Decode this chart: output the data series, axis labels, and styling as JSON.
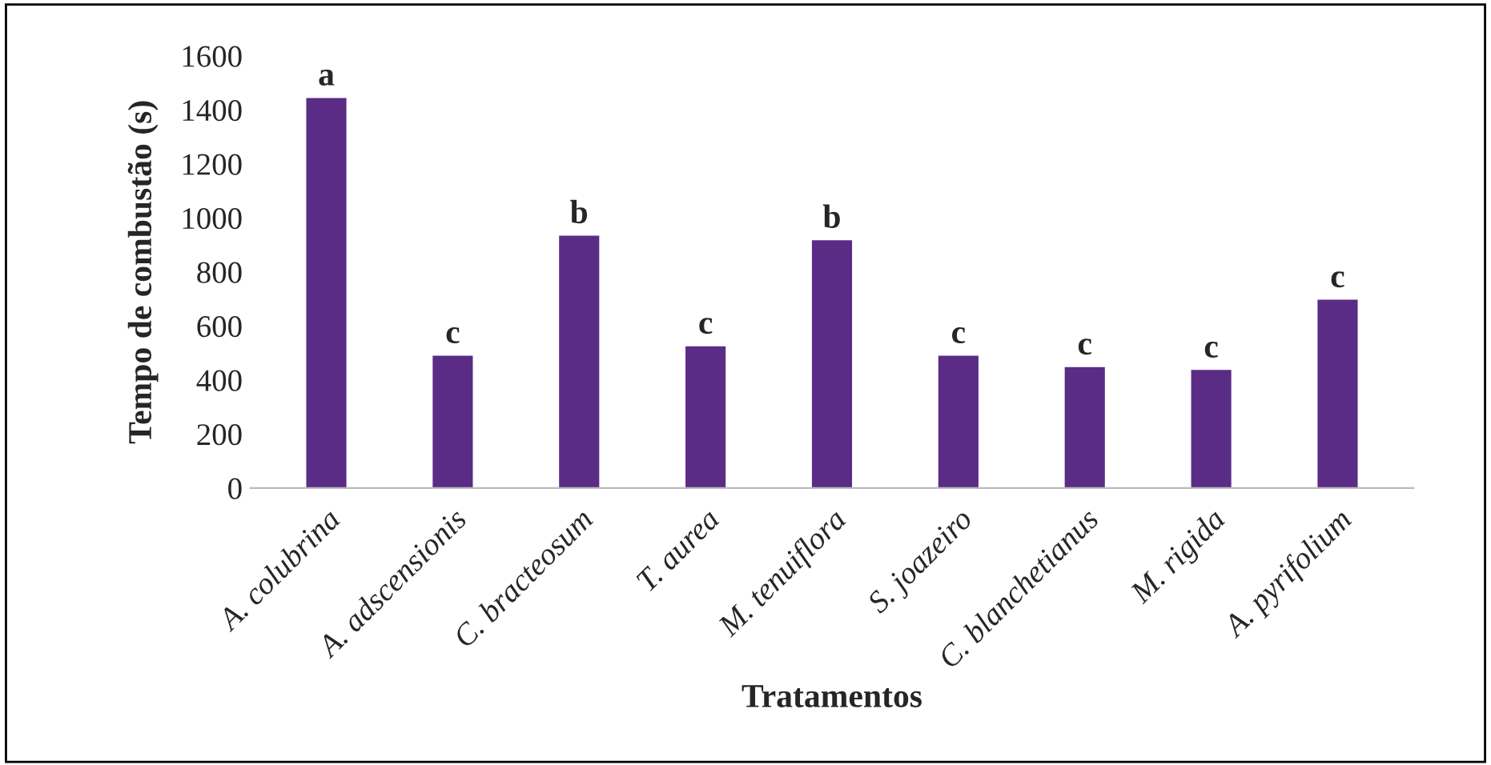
{
  "chart_data": {
    "type": "bar",
    "xlabel": "Tratamentos",
    "ylabel": "Tempo de combustão (s)",
    "categories": [
      "A. colubrina",
      "A. adscensionis",
      "C. bracteosum",
      "T. aurea",
      "M. tenuiflora",
      "S. joazeiro",
      "C. blanchetianus",
      "M. rigida",
      "A. pyrifolium"
    ],
    "values": [
      1440,
      486,
      930,
      521,
      913,
      486,
      444,
      433,
      693
    ],
    "color": "#5b2c86",
    "ylim": [
      0,
      1600
    ],
    "yticks": [
      0,
      200,
      400,
      600,
      800,
      1000,
      1200,
      1400,
      1600
    ],
    "grid": false,
    "annotations": [
      {
        "text": "a",
        "x": "A. colubrina",
        "y": 1440
      },
      {
        "text": "c",
        "x": "A. adscensionis",
        "y": 486
      },
      {
        "text": "b",
        "x": "C. bracteosum",
        "y": 930
      },
      {
        "text": "c",
        "x": "T. aurea",
        "y": 521
      },
      {
        "text": "b",
        "x": "M. tenuiflora",
        "y": 913
      },
      {
        "text": "c",
        "x": "S. joazeiro",
        "y": 486
      },
      {
        "text": "c",
        "x": "C. blanchetianus",
        "y": 444
      },
      {
        "text": "c",
        "x": "M. rigida",
        "y": 433
      },
      {
        "text": "c",
        "x": "A. pyrifolium",
        "y": 693
      }
    ]
  }
}
